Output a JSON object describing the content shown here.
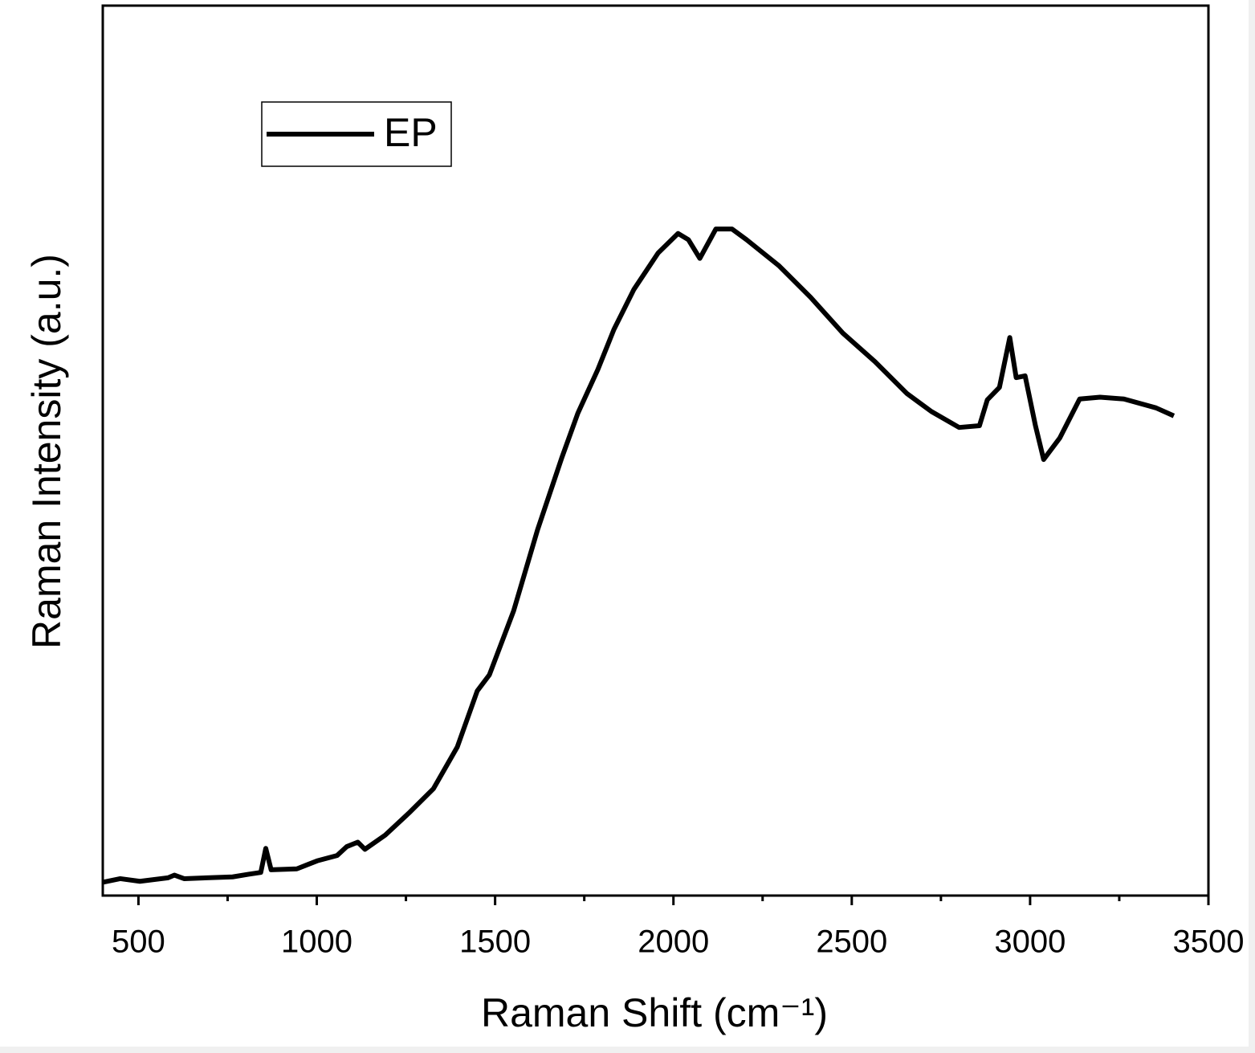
{
  "chart_data": {
    "type": "line",
    "x_label": "Raman Shift (cm⁻¹)",
    "y_label": "Raman Intensity (a.u.)",
    "x": [
      400,
      449,
      504,
      583,
      601,
      628,
      764,
      809,
      843,
      857,
      872,
      944,
      1001,
      1057,
      1084,
      1115,
      1135,
      1192,
      1259,
      1327,
      1394,
      1450,
      1484,
      1552,
      1619,
      1687,
      1732,
      1788,
      1833,
      1889,
      1957,
      2013,
      2042,
      2074,
      2119,
      2164,
      2205,
      2295,
      2385,
      2475,
      2565,
      2655,
      2723,
      2801,
      2858,
      2880,
      2914,
      2943,
      2961,
      2986,
      3015,
      3038,
      3083,
      3139,
      3196,
      3263,
      3353,
      3403
    ],
    "series": [
      {
        "name": "EP",
        "color": "#000000",
        "values": [
          1.5,
          1.9,
          1.6,
          2.0,
          2.3,
          1.9,
          2.1,
          2.4,
          2.6,
          5.3,
          2.9,
          3.0,
          3.9,
          4.5,
          5.5,
          6.0,
          5.2,
          6.8,
          9.3,
          12.0,
          16.7,
          23.0,
          24.8,
          32.0,
          41.1,
          49.2,
          54.2,
          59.1,
          63.6,
          68.1,
          72.2,
          74.4,
          73.7,
          71.6,
          74.9,
          74.9,
          73.7,
          70.8,
          67.2,
          63.2,
          60.0,
          56.4,
          54.4,
          52.6,
          52.8,
          55.7,
          57.1,
          62.7,
          58.2,
          58.4,
          52.8,
          49.0,
          51.4,
          55.8,
          56.0,
          55.8,
          54.8,
          53.9
        ]
      }
    ],
    "xlim": [
      400,
      3500
    ],
    "xticks": [
      500,
      1000,
      1500,
      2000,
      2500,
      3000,
      3500
    ],
    "xminor_ticks": [
      750,
      1250,
      1750,
      2250,
      2750,
      3250
    ],
    "ylim": [
      0,
      100
    ],
    "legend": "upper left"
  }
}
